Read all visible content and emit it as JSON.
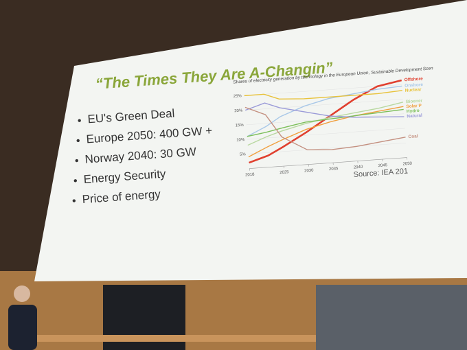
{
  "slide": {
    "title": "“The Times They Are A-Changin”",
    "bullets": [
      "EU's Green Deal",
      "Europe 2050: 400 GW +",
      "Norway 2040: 30 GW",
      "Energy Security",
      "Price of energy"
    ],
    "source": "Source: IEA 201"
  },
  "chart_data": {
    "type": "line",
    "title": "Shares of electricity generation by technology in the European Union, Sustainable Development Scen",
    "x": [
      2018,
      2022,
      2025,
      2030,
      2035,
      2040,
      2045,
      2050
    ],
    "xlim": [
      2018,
      2050
    ],
    "xticks": [
      2018,
      2025,
      2030,
      2035,
      2040,
      2045,
      2050
    ],
    "ylim": [
      0,
      27
    ],
    "yticks": [
      {
        "value": 5,
        "label": "5%"
      },
      {
        "value": 10,
        "label": "10%"
      },
      {
        "value": 15,
        "label": "15%"
      },
      {
        "value": 20,
        "label": "20%"
      },
      {
        "value": 25,
        "label": "25%"
      }
    ],
    "grid": true,
    "series": [
      {
        "name": "Offshore",
        "color": "#e0402f",
        "values": [
          2,
          4,
          6.5,
          11,
          16,
          21,
          25,
          26.5
        ]
      },
      {
        "name": "Onshore",
        "color": "#a9c8e8",
        "values": [
          11,
          14,
          17,
          20,
          22,
          23,
          24,
          24.5
        ]
      },
      {
        "name": "Nuclear",
        "color": "#e8c23a",
        "values": [
          25,
          25,
          23,
          22.5,
          22.5,
          22.5,
          22.5,
          23
        ]
      },
      {
        "name": "Bioener",
        "color": "#b8d8a0",
        "values": [
          8,
          10.5,
          12,
          14,
          15.5,
          16.5,
          17.5,
          19
        ]
      },
      {
        "name": "Solar P",
        "color": "#f0a040",
        "values": [
          4,
          7,
          9,
          12,
          14,
          15.5,
          16.5,
          17.5
        ]
      },
      {
        "name": "Hydro",
        "color": "#7cbf5a",
        "values": [
          11,
          12,
          13,
          14.5,
          15,
          15.5,
          16,
          16.5
        ]
      },
      {
        "name": "Natural",
        "color": "#9a9ad8",
        "values": [
          20,
          22,
          20,
          18,
          16,
          15,
          14.5,
          14
        ]
      },
      {
        "name": "Coal",
        "color": "#c49080",
        "values": [
          21,
          18,
          10,
          5,
          4.5,
          5,
          6,
          7
        ]
      }
    ]
  }
}
